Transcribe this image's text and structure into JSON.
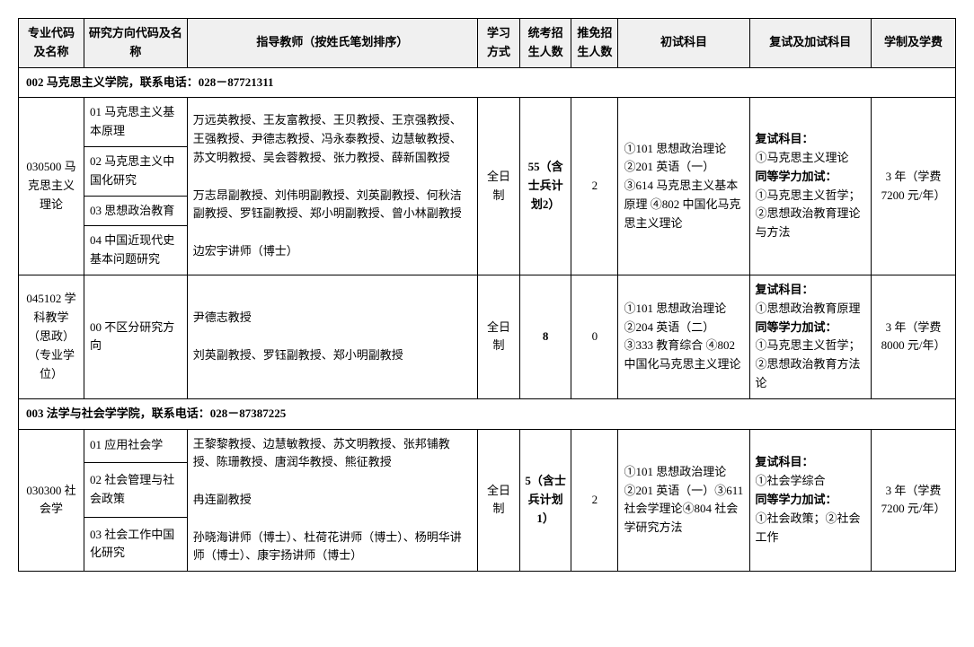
{
  "headers": {
    "col1": "专业代码及名称",
    "col2": "研究方向代码及名称",
    "col3": "指导教师（按姓氏笔划排序）",
    "col4": "学习方式",
    "col5": "统考招生人数",
    "col6": "推免招生人数",
    "col7": "初试科目",
    "col8": "复试及加试科目",
    "col9": "学制及学费"
  },
  "section1": "002 马克思主义学院，联系电话：028－87721311",
  "major1": {
    "name": "030500 马克思主义理论",
    "dir1": "01 马克思主义基本原理",
    "dir2": "02 马克思主义中国化研究",
    "dir3": "03 思想政治教育",
    "dir4": "04 中国近现代史基本问题研究",
    "teachers_p1": "万远英教授、王友富教授、王贝教授、王京强教授、王强教授、尹德志教授、冯永泰教授、边慧敏教授、苏文明教授、吴会蓉教授、张力教授、薛新国教授",
    "teachers_p2": "万志昂副教授、刘伟明副教授、刘英副教授、何秋洁副教授、罗钰副教授、郑小明副教授、曾小林副教授",
    "teachers_p3": "边宏宇讲师（博士）",
    "mode": "全日制",
    "enroll": "55（含士兵计划2）",
    "recommend": "2",
    "prelim": "①101 思想政治理论②201 英语（一）③614 马克思主义基本原理\n④802 中国化马克思主义理论",
    "retest_label": "复试科目：",
    "retest_body1": "①马克思主义理论",
    "retest_label2": "同等学力加试：",
    "retest_body2": "①马克思主义哲学；②思想政治教育理论与方法",
    "tuition": "3 年（学费7200 元/年）"
  },
  "major2": {
    "name": "045102 学科教学（思政）（专业学位）",
    "dir1": "00 不区分研究方向",
    "teachers_p1": "尹德志教授",
    "teachers_p2": "刘英副教授、罗钰副教授、郑小明副教授",
    "mode": "全日制",
    "enroll": "8",
    "recommend": "0",
    "prelim": "①101 思想政治理论②204 英语（二）③333 教育综合\n④802 中国化马克思主义理论",
    "retest_label": "复试科目：",
    "retest_body1": "①思想政治教育原理",
    "retest_label2": "同等学力加试：",
    "retest_body2": "①马克思主义哲学；②思想政治教育方法论",
    "tuition": "3 年（学费8000 元/年）"
  },
  "section2": "003 法学与社会学学院，联系电话：028－87387225",
  "major3": {
    "name": "030300 社会学",
    "dir1": "01 应用社会学",
    "dir2": "02 社会管理与社会政策",
    "dir3": "03 社会工作中国化研究",
    "teachers_p1": "王黎黎教授、边慧敏教授、苏文明教授、张邦铺教授、陈珊教授、唐润华教授、熊征教授",
    "teachers_p2": "冉连副教授",
    "teachers_p3": "孙晓海讲师（博士）、杜荷花讲师（博士）、杨明华讲师（博士）、康宇扬讲师（博士）",
    "mode": "全日制",
    "enroll": "5（含士兵计划1）",
    "recommend": "2",
    "prelim": "①101 思想政治理论②201 英语（一）③611 社会学理论④804 社会学研究方法",
    "retest_label": "复试科目：",
    "retest_body1": "①社会学综合",
    "retest_label2": "同等学力加试：",
    "retest_body2": "①社会政策；②社会工作",
    "tuition": "3 年（学费7200 元/年）"
  }
}
